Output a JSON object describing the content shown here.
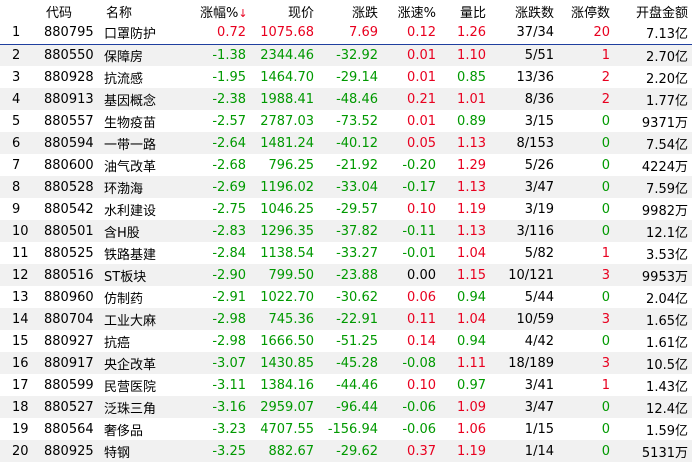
{
  "headers": {
    "seq": "",
    "code": "代码",
    "name": "名称",
    "change_pct": "涨幅%",
    "sort_arrow": "↓",
    "price": "现价",
    "change": "涨跌",
    "speed": "涨速%",
    "vol_ratio": "量比",
    "updown": "涨跌数",
    "limit_up": "涨停数",
    "open_amount": "开盘金额"
  },
  "colors": {
    "up": "#e8001f",
    "down": "#009900",
    "selected_border": "#1f3f9f"
  },
  "rows": [
    {
      "seq": "1",
      "code": "880795",
      "name": "口罩防护",
      "change_pct": "0.72",
      "price": "1075.68",
      "change": "7.69",
      "speed": "0.12",
      "vol_ratio": "1.26",
      "updown": "37/34",
      "limit_up": "20",
      "open_amount": "7.13亿"
    },
    {
      "seq": "2",
      "code": "880550",
      "name": "保障房",
      "change_pct": "-1.38",
      "price": "2344.46",
      "change": "-32.92",
      "speed": "0.01",
      "vol_ratio": "1.10",
      "updown": "5/51",
      "limit_up": "1",
      "open_amount": "2.70亿"
    },
    {
      "seq": "3",
      "code": "880928",
      "name": "抗流感",
      "change_pct": "-1.95",
      "price": "1464.70",
      "change": "-29.14",
      "speed": "0.01",
      "vol_ratio": "0.85",
      "updown": "13/36",
      "limit_up": "2",
      "open_amount": "2.20亿"
    },
    {
      "seq": "4",
      "code": "880913",
      "name": "基因概念",
      "change_pct": "-2.38",
      "price": "1988.41",
      "change": "-48.46",
      "speed": "0.21",
      "vol_ratio": "1.01",
      "updown": "8/36",
      "limit_up": "2",
      "open_amount": "1.77亿"
    },
    {
      "seq": "5",
      "code": "880557",
      "name": "生物疫苗",
      "change_pct": "-2.57",
      "price": "2787.03",
      "change": "-73.52",
      "speed": "0.01",
      "vol_ratio": "0.89",
      "updown": "3/15",
      "limit_up": "0",
      "open_amount": "9371万"
    },
    {
      "seq": "6",
      "code": "880594",
      "name": "一带一路",
      "change_pct": "-2.64",
      "price": "1481.24",
      "change": "-40.12",
      "speed": "0.05",
      "vol_ratio": "1.13",
      "updown": "8/153",
      "limit_up": "0",
      "open_amount": "7.54亿"
    },
    {
      "seq": "7",
      "code": "880600",
      "name": "油气改革",
      "change_pct": "-2.68",
      "price": "796.25",
      "change": "-21.92",
      "speed": "-0.20",
      "vol_ratio": "1.29",
      "updown": "5/26",
      "limit_up": "0",
      "open_amount": "4224万"
    },
    {
      "seq": "8",
      "code": "880528",
      "name": "环渤海",
      "change_pct": "-2.69",
      "price": "1196.02",
      "change": "-33.04",
      "speed": "-0.17",
      "vol_ratio": "1.13",
      "updown": "3/47",
      "limit_up": "0",
      "open_amount": "7.59亿"
    },
    {
      "seq": "9",
      "code": "880542",
      "name": "水利建设",
      "change_pct": "-2.75",
      "price": "1046.25",
      "change": "-29.57",
      "speed": "0.10",
      "vol_ratio": "1.19",
      "updown": "3/19",
      "limit_up": "0",
      "open_amount": "9982万"
    },
    {
      "seq": "10",
      "code": "880501",
      "name": "含H股",
      "change_pct": "-2.83",
      "price": "1296.35",
      "change": "-37.82",
      "speed": "-0.11",
      "vol_ratio": "1.13",
      "updown": "3/116",
      "limit_up": "0",
      "open_amount": "12.1亿"
    },
    {
      "seq": "11",
      "code": "880525",
      "name": "铁路基建",
      "change_pct": "-2.84",
      "price": "1138.54",
      "change": "-33.27",
      "speed": "-0.01",
      "vol_ratio": "1.04",
      "updown": "5/82",
      "limit_up": "1",
      "open_amount": "3.53亿"
    },
    {
      "seq": "12",
      "code": "880516",
      "name": "ST板块",
      "change_pct": "-2.90",
      "price": "799.50",
      "change": "-23.88",
      "speed": "0.00",
      "vol_ratio": "1.15",
      "updown": "10/121",
      "limit_up": "3",
      "open_amount": "9953万"
    },
    {
      "seq": "13",
      "code": "880960",
      "name": "仿制药",
      "change_pct": "-2.91",
      "price": "1022.70",
      "change": "-30.62",
      "speed": "0.06",
      "vol_ratio": "0.94",
      "updown": "5/44",
      "limit_up": "0",
      "open_amount": "2.04亿"
    },
    {
      "seq": "14",
      "code": "880704",
      "name": "工业大麻",
      "change_pct": "-2.98",
      "price": "745.36",
      "change": "-22.91",
      "speed": "0.11",
      "vol_ratio": "1.04",
      "updown": "10/59",
      "limit_up": "3",
      "open_amount": "1.65亿"
    },
    {
      "seq": "15",
      "code": "880927",
      "name": "抗癌",
      "change_pct": "-2.98",
      "price": "1666.50",
      "change": "-51.25",
      "speed": "0.14",
      "vol_ratio": "0.94",
      "updown": "4/42",
      "limit_up": "0",
      "open_amount": "1.61亿"
    },
    {
      "seq": "16",
      "code": "880917",
      "name": "央企改革",
      "change_pct": "-3.07",
      "price": "1430.85",
      "change": "-45.28",
      "speed": "-0.08",
      "vol_ratio": "1.11",
      "updown": "18/189",
      "limit_up": "3",
      "open_amount": "10.5亿"
    },
    {
      "seq": "17",
      "code": "880599",
      "name": "民营医院",
      "change_pct": "-3.11",
      "price": "1384.16",
      "change": "-44.46",
      "speed": "0.10",
      "vol_ratio": "0.97",
      "updown": "3/41",
      "limit_up": "1",
      "open_amount": "1.43亿"
    },
    {
      "seq": "18",
      "code": "880527",
      "name": "泛珠三角",
      "change_pct": "-3.16",
      "price": "2959.07",
      "change": "-96.44",
      "speed": "-0.06",
      "vol_ratio": "1.09",
      "updown": "3/47",
      "limit_up": "0",
      "open_amount": "12.4亿"
    },
    {
      "seq": "19",
      "code": "880564",
      "name": "奢侈品",
      "change_pct": "-3.23",
      "price": "4707.55",
      "change": "-156.94",
      "speed": "-0.06",
      "vol_ratio": "1.06",
      "updown": "1/15",
      "limit_up": "0",
      "open_amount": "1.59亿"
    },
    {
      "seq": "20",
      "code": "880925",
      "name": "特钢",
      "change_pct": "-3.25",
      "price": "882.67",
      "change": "-29.62",
      "speed": "0.37",
      "vol_ratio": "1.19",
      "updown": "1/14",
      "limit_up": "0",
      "open_amount": "5131万"
    }
  ]
}
